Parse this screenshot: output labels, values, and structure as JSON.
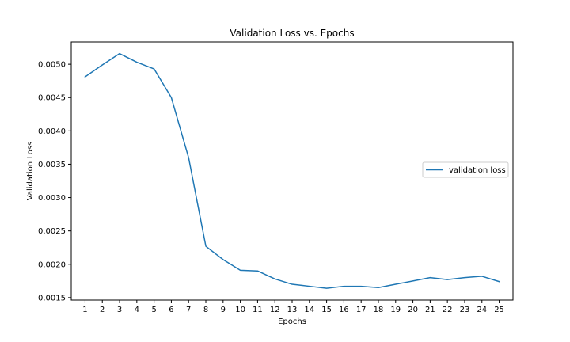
{
  "chart_data": {
    "type": "line",
    "title": "Validation Loss vs. Epochs",
    "xlabel": "Epochs",
    "ylabel": "Validation Loss",
    "x": [
      1,
      2,
      3,
      4,
      5,
      6,
      7,
      8,
      9,
      10,
      11,
      12,
      13,
      14,
      15,
      16,
      17,
      18,
      19,
      20,
      21,
      22,
      23,
      24,
      25
    ],
    "x_ticks": [
      "1",
      "2",
      "3",
      "4",
      "5",
      "6",
      "7",
      "8",
      "9",
      "10",
      "11",
      "12",
      "13",
      "14",
      "15",
      "16",
      "17",
      "18",
      "19",
      "20",
      "21",
      "22",
      "23",
      "24",
      "25"
    ],
    "y_ticks": [
      "0.0015",
      "0.0020",
      "0.0025",
      "0.0030",
      "0.0035",
      "0.0040",
      "0.0045",
      "0.0050"
    ],
    "xlim": [
      0.2,
      25.8
    ],
    "ylim": [
      0.001463,
      0.005334
    ],
    "grid": false,
    "legend": {
      "position": "center-right",
      "entries": [
        "validation loss"
      ]
    },
    "series": [
      {
        "name": "validation loss",
        "color": "#1f77b4",
        "values": [
          0.00481,
          0.00499,
          0.00516,
          0.00503,
          0.00493,
          0.0045,
          0.0036,
          0.00227,
          0.00207,
          0.00191,
          0.0019,
          0.00178,
          0.0017,
          0.00167,
          0.00164,
          0.00167,
          0.00167,
          0.00165,
          0.0017,
          0.00175,
          0.0018,
          0.00177,
          0.0018,
          0.00182,
          0.00174
        ]
      }
    ]
  }
}
